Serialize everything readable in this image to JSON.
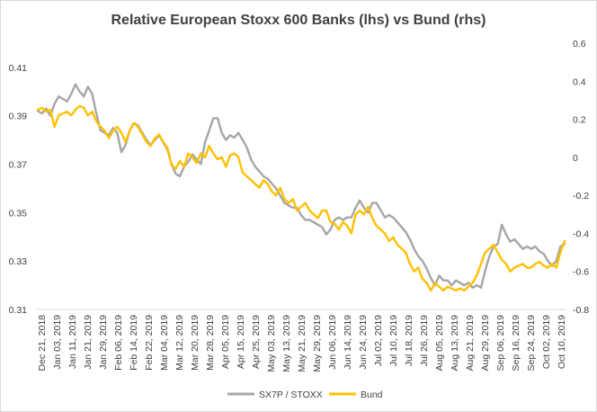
{
  "chart_data": {
    "type": "line",
    "title": "Relative European Stoxx 600 Banks (lhs) vs Bund (rhs)",
    "y_left": {
      "ticks": [
        "0.31",
        "0.33",
        "0.35",
        "0.37",
        "0.39",
        "0.41"
      ],
      "range": [
        0.31,
        0.42
      ]
    },
    "y_right": {
      "ticks": [
        "-0.8",
        "-0.6",
        "-0.4",
        "-0.2",
        "0",
        "0.2",
        "0.4",
        "0.6"
      ],
      "range": [
        -0.8,
        0.6
      ]
    },
    "x_ticks": [
      "Dec 21, 2018",
      "Jan 03, 2019",
      "Jan 11, 2019",
      "Jan 21, 2019",
      "Jan 29, 2019",
      "Feb 06, 2019",
      "Feb 14, 2019",
      "Feb 22, 2019",
      "Mar 04, 2019",
      "Mar 12, 2019",
      "Mar 20, 2019",
      "Mar 28, 2019",
      "Apr 05, 2019",
      "Apr 15, 2019",
      "Apr 25, 2019",
      "May 03, 2019",
      "May 13, 2019",
      "May 21, 2019",
      "May 29, 2019",
      "Jun 06, 2019",
      "Jun 14, 2019",
      "Jun 24, 2019",
      "Jul 02, 2019",
      "Jul 10, 2019",
      "Jul 18, 2019",
      "Jul 26, 2019",
      "Aug 05, 2019",
      "Aug 13, 2019",
      "Aug 21, 2019",
      "Aug 29, 2019",
      "Sep 06, 2019",
      "Sep 16, 2019",
      "Sep 24, 2019",
      "Oct 02, 2019",
      "Oct 10, 2019"
    ],
    "series": [
      {
        "name": "SX7P / STOXX",
        "axis": "left",
        "color": "#a6a6a6",
        "values": [
          0.392,
          0.391,
          0.393,
          0.39,
          0.395,
          0.398,
          0.397,
          0.396,
          0.399,
          0.403,
          0.4,
          0.398,
          0.402,
          0.399,
          0.391,
          0.384,
          0.383,
          0.382,
          0.385,
          0.383,
          0.375,
          0.378,
          0.384,
          0.387,
          0.386,
          0.383,
          0.38,
          0.378,
          0.38,
          0.382,
          0.379,
          0.376,
          0.37,
          0.366,
          0.365,
          0.369,
          0.371,
          0.374,
          0.372,
          0.37,
          0.379,
          0.384,
          0.389,
          0.389,
          0.383,
          0.38,
          0.382,
          0.381,
          0.383,
          0.38,
          0.377,
          0.372,
          0.369,
          0.367,
          0.365,
          0.364,
          0.362,
          0.36,
          0.357,
          0.354,
          0.353,
          0.352,
          0.352,
          0.349,
          0.347,
          0.347,
          0.346,
          0.345,
          0.344,
          0.341,
          0.343,
          0.347,
          0.348,
          0.347,
          0.348,
          0.348,
          0.352,
          0.355,
          0.352,
          0.35,
          0.354,
          0.354,
          0.351,
          0.348,
          0.349,
          0.348,
          0.346,
          0.344,
          0.342,
          0.339,
          0.335,
          0.332,
          0.33,
          0.327,
          0.323,
          0.32,
          0.324,
          0.322,
          0.322,
          0.32,
          0.322,
          0.321,
          0.32,
          0.321,
          0.319,
          0.32,
          0.319,
          0.326,
          0.332,
          0.336,
          0.337,
          0.345,
          0.341,
          0.338,
          0.339,
          0.337,
          0.335,
          0.336,
          0.335,
          0.336,
          0.334,
          0.333,
          0.33,
          0.328,
          0.33,
          0.336,
          0.337
        ]
      },
      {
        "name": "Bund",
        "axis": "right",
        "color": "#ffc000",
        "values": [
          0.25,
          0.26,
          0.24,
          0.25,
          0.16,
          0.22,
          0.23,
          0.24,
          0.22,
          0.25,
          0.27,
          0.26,
          0.22,
          0.24,
          0.19,
          0.16,
          0.14,
          0.1,
          0.14,
          0.16,
          0.13,
          0.08,
          0.14,
          0.18,
          0.16,
          0.12,
          0.08,
          0.06,
          0.1,
          0.12,
          0.08,
          0.05,
          -0.04,
          -0.06,
          -0.02,
          -0.05,
          0.02,
          0.0,
          -0.03,
          0.02,
          0.0,
          0.06,
          0.02,
          -0.01,
          0.0,
          -0.05,
          0.01,
          0.02,
          0.0,
          -0.08,
          -0.1,
          -0.12,
          -0.14,
          -0.16,
          -0.12,
          -0.14,
          -0.18,
          -0.2,
          -0.16,
          -0.22,
          -0.24,
          -0.22,
          -0.28,
          -0.26,
          -0.24,
          -0.28,
          -0.3,
          -0.32,
          -0.28,
          -0.28,
          -0.34,
          -0.35,
          -0.38,
          -0.34,
          -0.36,
          -0.4,
          -0.3,
          -0.28,
          -0.3,
          -0.26,
          -0.32,
          -0.36,
          -0.38,
          -0.4,
          -0.44,
          -0.42,
          -0.46,
          -0.48,
          -0.5,
          -0.56,
          -0.6,
          -0.58,
          -0.64,
          -0.66,
          -0.7,
          -0.66,
          -0.68,
          -0.7,
          -0.68,
          -0.69,
          -0.7,
          -0.69,
          -0.7,
          -0.68,
          -0.66,
          -0.62,
          -0.56,
          -0.5,
          -0.48,
          -0.46,
          -0.5,
          -0.54,
          -0.56,
          -0.6,
          -0.58,
          -0.57,
          -0.56,
          -0.58,
          -0.58,
          -0.56,
          -0.55,
          -0.57,
          -0.58,
          -0.56,
          -0.58,
          -0.5,
          -0.44
        ]
      }
    ],
    "legend": {
      "position": "bottom"
    },
    "grid": false
  }
}
